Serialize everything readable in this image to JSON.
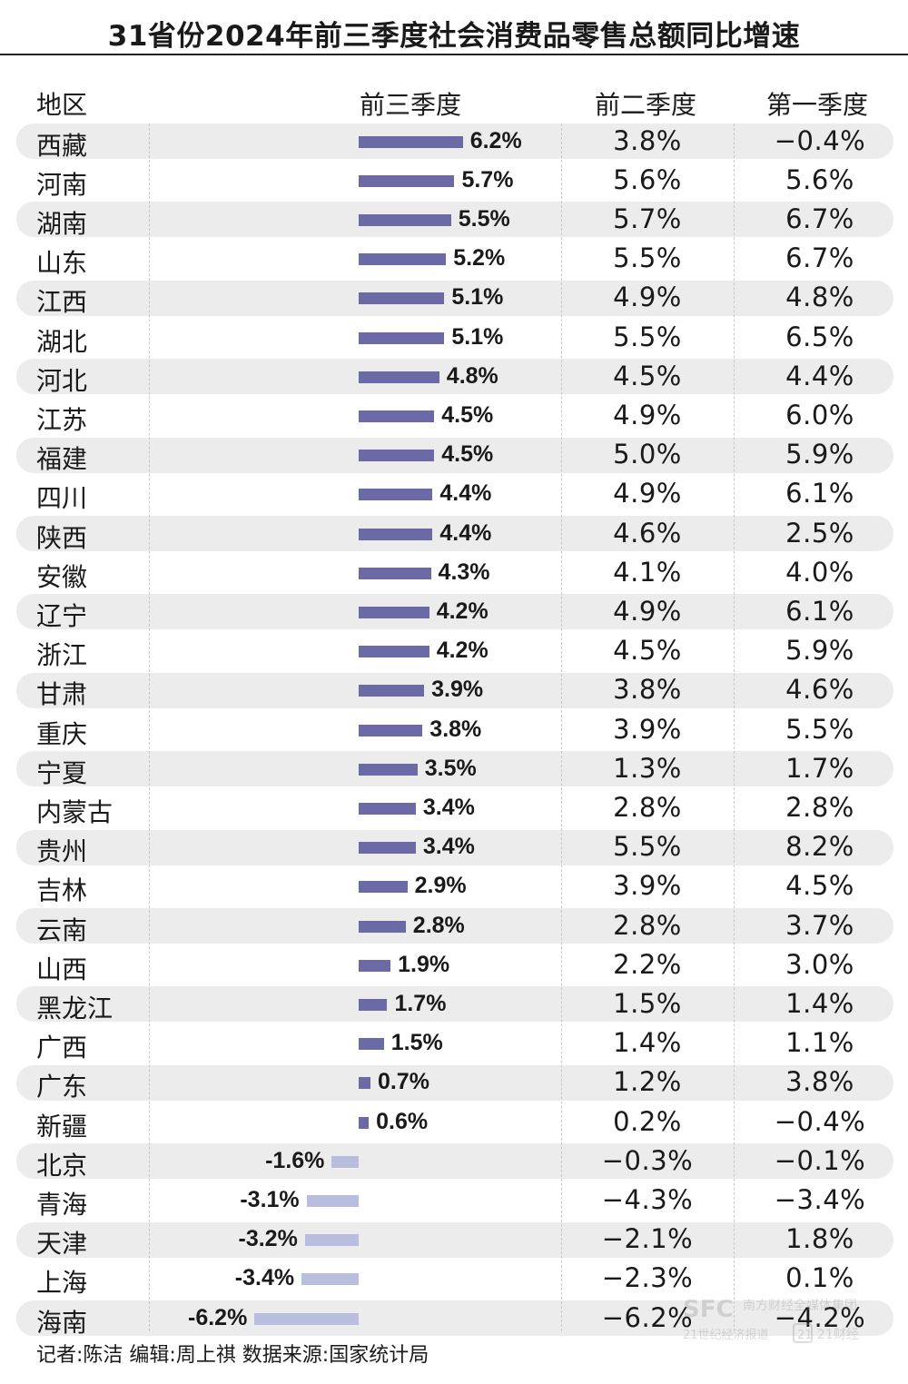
{
  "title": "31省份2024年前三季度社会消费品零售总额同比增速",
  "headers": {
    "region": "地区",
    "q3": "前三季度",
    "h1": "前二季度",
    "q1": "第一季度"
  },
  "footer": "记者:陈洁  编辑:周上祺  数据来源:国家统计局",
  "colors": {
    "positive_bar": "#6b6aa6",
    "negative_bar": "#b9bedf",
    "row_shade": "#ececec"
  },
  "chart_data": {
    "type": "bar",
    "orientation": "horizontal",
    "series_name": "前三季度",
    "unit": "%",
    "rows": [
      {
        "region": "西藏",
        "q3": 6.2,
        "q3_label": "6.2%",
        "h1": "3.8%",
        "q1": "−0.4%"
      },
      {
        "region": "河南",
        "q3": 5.7,
        "q3_label": "5.7%",
        "h1": "5.6%",
        "q1": "5.6%"
      },
      {
        "region": "湖南",
        "q3": 5.5,
        "q3_label": "5.5%",
        "h1": "5.7%",
        "q1": "6.7%"
      },
      {
        "region": "山东",
        "q3": 5.2,
        "q3_label": "5.2%",
        "h1": "5.5%",
        "q1": "6.7%"
      },
      {
        "region": "江西",
        "q3": 5.1,
        "q3_label": "5.1%",
        "h1": "4.9%",
        "q1": "4.8%"
      },
      {
        "region": "湖北",
        "q3": 5.1,
        "q3_label": "5.1%",
        "h1": "5.5%",
        "q1": "6.5%"
      },
      {
        "region": "河北",
        "q3": 4.8,
        "q3_label": "4.8%",
        "h1": "4.5%",
        "q1": "4.4%"
      },
      {
        "region": "江苏",
        "q3": 4.5,
        "q3_label": "4.5%",
        "h1": "4.9%",
        "q1": "6.0%"
      },
      {
        "region": "福建",
        "q3": 4.5,
        "q3_label": "4.5%",
        "h1": "5.0%",
        "q1": "5.9%"
      },
      {
        "region": "四川",
        "q3": 4.4,
        "q3_label": "4.4%",
        "h1": "4.9%",
        "q1": "6.1%"
      },
      {
        "region": "陕西",
        "q3": 4.4,
        "q3_label": "4.4%",
        "h1": "4.6%",
        "q1": "2.5%"
      },
      {
        "region": "安徽",
        "q3": 4.3,
        "q3_label": "4.3%",
        "h1": "4.1%",
        "q1": "4.0%"
      },
      {
        "region": "辽宁",
        "q3": 4.2,
        "q3_label": "4.2%",
        "h1": "4.9%",
        "q1": "6.1%"
      },
      {
        "region": "浙江",
        "q3": 4.2,
        "q3_label": "4.2%",
        "h1": "4.5%",
        "q1": "5.9%"
      },
      {
        "region": "甘肃",
        "q3": 3.9,
        "q3_label": "3.9%",
        "h1": "3.8%",
        "q1": "4.6%"
      },
      {
        "region": "重庆",
        "q3": 3.8,
        "q3_label": "3.8%",
        "h1": "3.9%",
        "q1": "5.5%"
      },
      {
        "region": "宁夏",
        "q3": 3.5,
        "q3_label": "3.5%",
        "h1": "1.3%",
        "q1": "1.7%"
      },
      {
        "region": "内蒙古",
        "q3": 3.4,
        "q3_label": "3.4%",
        "h1": "2.8%",
        "q1": "2.8%"
      },
      {
        "region": "贵州",
        "q3": 3.4,
        "q3_label": "3.4%",
        "h1": "5.5%",
        "q1": "8.2%"
      },
      {
        "region": "吉林",
        "q3": 2.9,
        "q3_label": "2.9%",
        "h1": "3.9%",
        "q1": "4.5%"
      },
      {
        "region": "云南",
        "q3": 2.8,
        "q3_label": "2.8%",
        "h1": "2.8%",
        "q1": "3.7%"
      },
      {
        "region": "山西",
        "q3": 1.9,
        "q3_label": "1.9%",
        "h1": "2.2%",
        "q1": "3.0%"
      },
      {
        "region": "黑龙江",
        "q3": 1.7,
        "q3_label": "1.7%",
        "h1": "1.5%",
        "q1": "1.4%"
      },
      {
        "region": "广西",
        "q3": 1.5,
        "q3_label": "1.5%",
        "h1": "1.4%",
        "q1": "1.1%"
      },
      {
        "region": "广东",
        "q3": 0.7,
        "q3_label": "0.7%",
        "h1": "1.2%",
        "q1": "3.8%"
      },
      {
        "region": "新疆",
        "q3": 0.6,
        "q3_label": "0.6%",
        "h1": "0.2%",
        "q1": "−0.4%"
      },
      {
        "region": "北京",
        "q3": -1.6,
        "q3_label": "-1.6%",
        "h1": "−0.3%",
        "q1": "−0.1%"
      },
      {
        "region": "青海",
        "q3": -3.1,
        "q3_label": "-3.1%",
        "h1": "−4.3%",
        "q1": "−3.4%"
      },
      {
        "region": "天津",
        "q3": -3.2,
        "q3_label": "-3.2%",
        "h1": "−2.1%",
        "q1": "1.8%"
      },
      {
        "region": "上海",
        "q3": -3.4,
        "q3_label": "-3.4%",
        "h1": "−2.3%",
        "q1": "0.1%"
      },
      {
        "region": "海南",
        "q3": -6.2,
        "q3_label": "-6.2%",
        "h1": "−6.2%",
        "q1": "−4.2%"
      }
    ]
  }
}
